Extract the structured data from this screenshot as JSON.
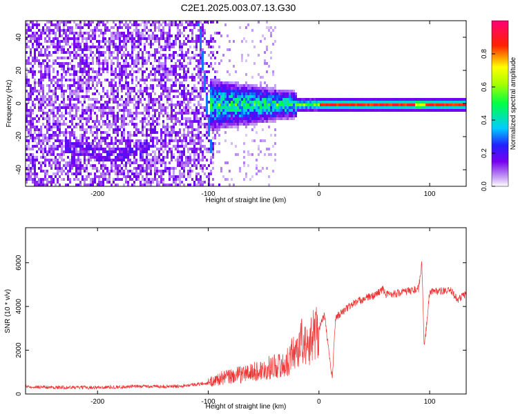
{
  "title": "C2E1.2025.003.07.13.G30",
  "colors": {
    "signal": "#ee3333",
    "accent": "#5500ee"
  },
  "chart_data": [
    {
      "type": "heatmap",
      "xlabel": "Height of straight line (km)",
      "ylabel": "Frequency (Hz)",
      "colorbar_label": "Normalized spectral amplitude",
      "xlim": [
        -265,
        133
      ],
      "ylim": [
        -50,
        50
      ],
      "x_ticks": [
        "-200",
        "-100",
        "0",
        "100"
      ],
      "y_ticks": [
        "40",
        "20",
        "0",
        "-20",
        "-40"
      ],
      "colorbar_ticks": [
        "0.0",
        "0.2",
        "0.4",
        "0.6",
        "0.8"
      ],
      "colorbar_range": [
        0,
        1
      ],
      "colormap": "rainbow (white-purple-blue-cyan-green-yellow-red-magenta)",
      "description_note": "",
      "features": {
        "noise_region_x": [
          -265,
          -90
        ],
        "sloped_line": [
          [
            -105,
            20
          ],
          [
            -98,
            -30
          ]
        ],
        "signal_band_center_hz": 0,
        "signal_band_start_km": -100
      }
    },
    {
      "type": "line",
      "xlabel": "Height of straight line (km)",
      "ylabel": "SNR (10 * v/v)",
      "xlim": [
        -265,
        133
      ],
      "ylim": [
        0,
        7600
      ],
      "x_ticks": [
        "-200",
        "-100",
        "0",
        "100"
      ],
      "y_ticks": [
        "0",
        "2000",
        "4000",
        "6000"
      ],
      "series": [
        {
          "x": [
            -265,
            -240,
            -200,
            -160,
            -130,
            -110,
            -100,
            -90,
            -80,
            -70,
            -60,
            -50,
            -40,
            -30,
            -25,
            -20,
            -15,
            -10,
            -5,
            0,
            5,
            10,
            12,
            15,
            20,
            30,
            40,
            50,
            58,
            60,
            70,
            80,
            90,
            93,
            95,
            100,
            110,
            120,
            125,
            133
          ],
          "y": [
            350,
            300,
            300,
            350,
            350,
            450,
            500,
            700,
            800,
            900,
            1000,
            1100,
            1300,
            1300,
            1800,
            2000,
            2500,
            2000,
            2800,
            3000,
            3600,
            1500,
            700,
            3500,
            3700,
            4100,
            4350,
            4500,
            4800,
            4550,
            4600,
            4700,
            4800,
            6000,
            2000,
            4700,
            4700,
            4700,
            4300,
            4600
          ]
        }
      ]
    }
  ]
}
